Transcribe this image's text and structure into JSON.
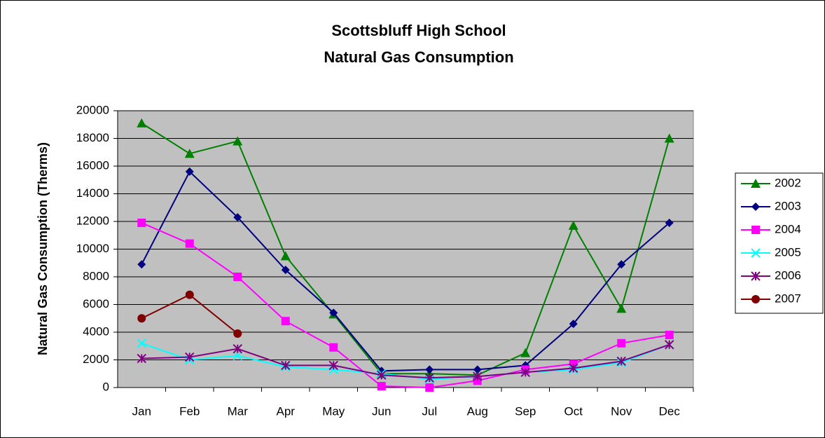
{
  "chart_data": {
    "type": "line",
    "title": [
      "Scottsbluff High School",
      "Natural Gas Consumption"
    ],
    "y_label": "Natural Gas Consumption (Therms)",
    "categories": [
      "Jan",
      "Feb",
      "Mar",
      "Apr",
      "May",
      "Jun",
      "Jul",
      "Aug",
      "Sep",
      "Oct",
      "Nov",
      "Dec"
    ],
    "series": [
      {
        "name": "2002",
        "color": "#008000",
        "marker": "triangle",
        "values": [
          19100,
          16900,
          17800,
          9500,
          5300,
          1000,
          1000,
          900,
          2500,
          11700,
          5700,
          18000
        ]
      },
      {
        "name": "2003",
        "color": "#000080",
        "marker": "diamond",
        "values": [
          8900,
          15600,
          12300,
          8500,
          5400,
          1200,
          1300,
          1300,
          1600,
          4600,
          8900,
          11900
        ]
      },
      {
        "name": "2004",
        "color": "#ff00ff",
        "marker": "square",
        "values": [
          11900,
          10400,
          8000,
          4800,
          2900,
          100,
          0,
          500,
          1300,
          1700,
          3200,
          3800
        ]
      },
      {
        "name": "2005",
        "color": "#00ffff",
        "marker": "x",
        "values": [
          3200,
          2000,
          2300,
          1500,
          1300,
          1000,
          600,
          800,
          1100,
          1300,
          1800,
          3100
        ]
      },
      {
        "name": "2006",
        "color": "#800080",
        "marker": "star",
        "values": [
          2100,
          2200,
          2800,
          1600,
          1600,
          900,
          700,
          800,
          1100,
          1400,
          1900,
          3100
        ]
      },
      {
        "name": "2007",
        "color": "#800000",
        "marker": "circle",
        "values": [
          5000,
          6700,
          3900,
          null,
          null,
          null,
          null,
          null,
          null,
          null,
          null,
          null
        ]
      }
    ],
    "ylim": [
      0,
      20000
    ],
    "yticks": [
      0,
      2000,
      4000,
      6000,
      8000,
      10000,
      12000,
      14000,
      16000,
      18000,
      20000
    ],
    "grid": true,
    "legend": "right"
  }
}
